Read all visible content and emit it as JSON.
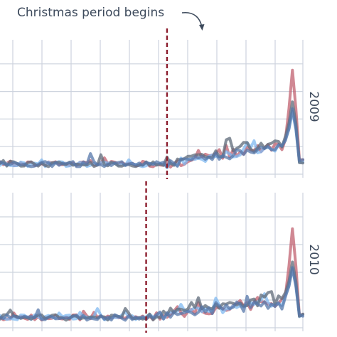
{
  "annotation": {
    "text": "Christmas period begins"
  },
  "colors": {
    "background": "#ffffff",
    "grid": "#cdd3de",
    "marker": "#8b1c2c",
    "annotation_text": "#3d4a5c",
    "series_red": "#c0606f",
    "series_blue": "#7fb8f0",
    "series_gray": "#5e6a78",
    "series_steel": "#5577aa"
  },
  "chart_data": [
    {
      "type": "line",
      "facet_label": "2009",
      "x": "day index (Oct–Dec, 90 days)",
      "ylim": [
        0,
        100
      ],
      "christmas_start_day": 50,
      "spike_day": 86,
      "series": [
        {
          "color_key": "series_red",
          "baseline": 10,
          "late_level": 22,
          "spike": 78
        },
        {
          "color_key": "series_blue",
          "baseline": 10,
          "late_level": 22,
          "spike": 48
        },
        {
          "color_key": "series_gray",
          "baseline": 10,
          "late_level": 24,
          "spike": 55
        },
        {
          "color_key": "series_steel",
          "baseline": 10,
          "late_level": 21,
          "spike": 50
        }
      ]
    },
    {
      "type": "line",
      "facet_label": "2010",
      "x": "day index (Oct–Dec, 90 days)",
      "ylim": [
        0,
        100
      ],
      "christmas_start_day": 44,
      "spike_day": 86,
      "series": [
        {
          "color_key": "series_red",
          "baseline": 10,
          "late_level": 20,
          "spike": 74
        },
        {
          "color_key": "series_blue",
          "baseline": 10,
          "late_level": 20,
          "spike": 45
        },
        {
          "color_key": "series_gray",
          "baseline": 10,
          "late_level": 22,
          "spike": 50
        },
        {
          "color_key": "series_steel",
          "baseline": 10,
          "late_level": 19,
          "spike": 46
        }
      ]
    }
  ]
}
